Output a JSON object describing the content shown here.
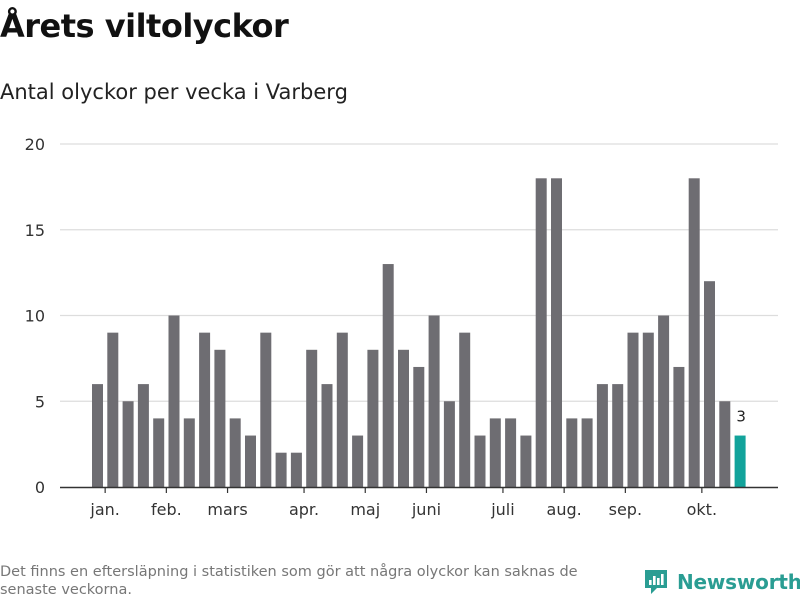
{
  "title": "Årets viltolyckor",
  "subtitle": "Antal olyckor per vecka i Varberg",
  "footnote": "Det finns en eftersläpning i statistiken som gör att några olyckor kan saknas de senaste veckorna.",
  "brand": {
    "name": "Newsworthy",
    "icon": "newsworthy-logo-icon",
    "color": "#2a9d93"
  },
  "colors": {
    "bar": "#6e6d72",
    "highlight": "#12a39b",
    "grid": "#dddddd",
    "axis": "#333333"
  },
  "chart_data": {
    "type": "bar",
    "values": [
      6,
      9,
      5,
      6,
      4,
      10,
      4,
      9,
      8,
      4,
      3,
      9,
      2,
      2,
      8,
      6,
      9,
      3,
      8,
      13,
      8,
      7,
      10,
      5,
      9,
      3,
      4,
      4,
      3,
      18,
      18,
      4,
      4,
      6,
      6,
      9,
      9,
      10,
      7,
      18,
      12,
      5,
      3
    ],
    "highlight_index": 42,
    "highlight_label": "3",
    "ylim": [
      0,
      20
    ],
    "yticks": [
      0,
      5,
      10,
      15,
      20
    ],
    "month_labels": [
      {
        "label": "jan.",
        "bar_index": 0.5
      },
      {
        "label": "feb.",
        "bar_index": 4.5
      },
      {
        "label": "mars",
        "bar_index": 8.5
      },
      {
        "label": "apr.",
        "bar_index": 13.5
      },
      {
        "label": "maj",
        "bar_index": 17.5
      },
      {
        "label": "juni",
        "bar_index": 21.5
      },
      {
        "label": "juli",
        "bar_index": 26.5
      },
      {
        "label": "aug.",
        "bar_index": 30.5
      },
      {
        "label": "sep.",
        "bar_index": 34.5
      },
      {
        "label": "okt.",
        "bar_index": 39.5
      }
    ],
    "grid": true,
    "xlabel": "",
    "ylabel": ""
  }
}
